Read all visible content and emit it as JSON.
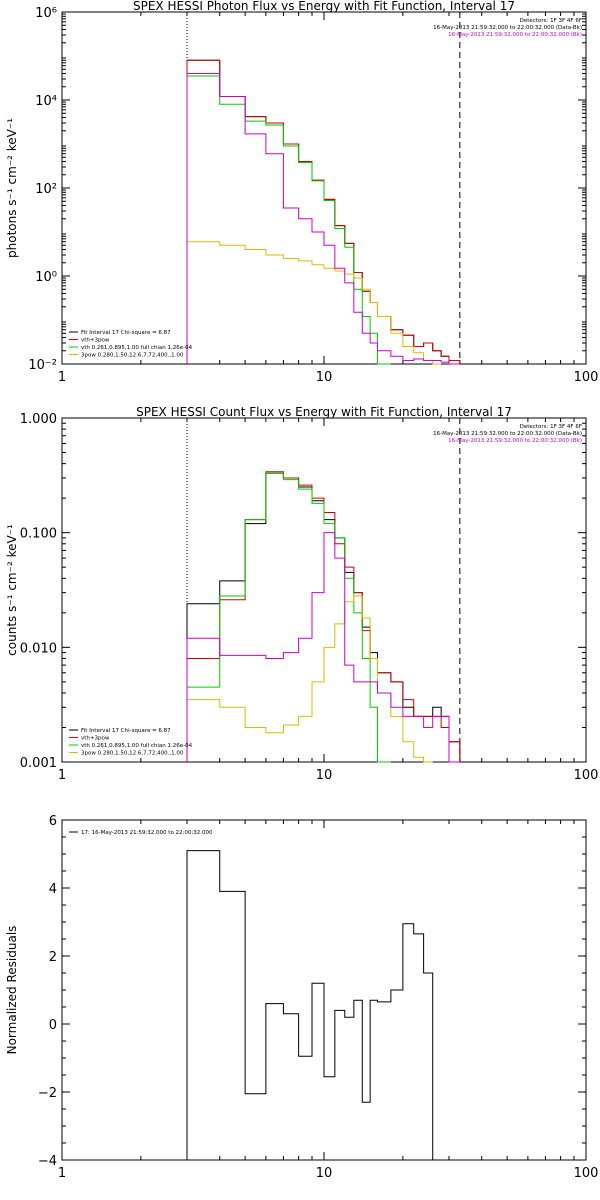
{
  "chart_data": [
    {
      "type": "line",
      "title": "SPEX HESSI Photon Flux vs Energy with Fit Function, Interval 17",
      "ylabel": "photons s⁻¹ cm⁻² keV⁻¹",
      "xlabel": "",
      "xscale": "log",
      "yscale": "log",
      "xlim": [
        1,
        100
      ],
      "ylim": [
        0.01,
        1000000
      ],
      "xticks": [
        {
          "v": 1,
          "label": "1"
        },
        {
          "v": 10,
          "label": "10"
        },
        {
          "v": 100,
          "label": "100"
        }
      ],
      "yticks": [
        {
          "v": 0.01,
          "label": "10⁻²"
        },
        {
          "v": 1,
          "label": "10⁰"
        },
        {
          "v": 100,
          "label": "10²"
        },
        {
          "v": 10000,
          "label": "10⁴"
        },
        {
          "v": 1000000,
          "label": "10⁶"
        }
      ],
      "vlines": [
        {
          "x": 3,
          "style": "dotted"
        },
        {
          "x": 33,
          "style": "dashed"
        }
      ],
      "info": [
        {
          "text": "Detectors: 1F 3F 4F 6F",
          "color": "#000000"
        },
        {
          "text": "16-May-2013 21:59:32.000 to 22:00:32.000 (Data-Bk)",
          "color": "#000000"
        },
        {
          "text": "16-May-2013 21:59:32.000 to 22:00:32.000 (Bk)",
          "color": "#cc00cc"
        }
      ],
      "legend": [
        {
          "text": "Fit Interval 17   Chi-square = 6.87",
          "color": "#000000"
        },
        {
          "text": "vth+3pow",
          "color": "#d40000"
        },
        {
          "text": "vth 0.261,0.895,1.00  full chian 1.26e-04",
          "color": "#00cc00"
        },
        {
          "text": "3pow 0.280,1.50,12.6,7.72,400.,1.00",
          "color": "#ddbb00"
        }
      ],
      "edges": [
        3,
        4,
        5,
        6,
        7,
        8,
        9,
        10,
        11,
        12,
        13,
        14,
        15,
        16,
        18,
        20,
        22,
        24,
        26,
        28,
        30,
        33
      ],
      "series": [
        {
          "color": "#000000",
          "values": [
            80000,
            12000,
            4200,
            3000,
            1000,
            400,
            150,
            55,
            14,
            5.5,
            1.2,
            0.45,
            0.25,
            0.12,
            0.06,
            0.045,
            0.025,
            0.03,
            0.02,
            0.015,
            0.012
          ]
        },
        {
          "color": "#d40000",
          "values": [
            80000,
            12000,
            4200,
            3000,
            1000,
            400,
            150,
            55,
            14,
            5.5,
            1.2,
            0.45,
            0.25,
            0.12,
            0.06,
            0.045,
            0.025,
            0.03,
            0.02,
            0.015,
            0.012
          ]
        },
        {
          "color": "#00cc00",
          "values": [
            35000,
            8000,
            3300,
            2700,
            900,
            380,
            145,
            52,
            12,
            4.5,
            0.5,
            0.12,
            0.05,
            0.01
          ]
        },
        {
          "color": "#ddbb00",
          "values": [
            6,
            5,
            4,
            3,
            2.5,
            2.2,
            1.8,
            1.5,
            1.3,
            1.1,
            0.9,
            0.5,
            0.25,
            0.12,
            0.05,
            0.025,
            0.018,
            0.012,
            0.01
          ]
        },
        {
          "color": "#cc00cc",
          "values": [
            40000,
            12000,
            1700,
            600,
            35,
            20,
            10,
            5,
            1.5,
            0.7,
            0.15,
            0.05,
            0.03,
            0.02,
            0.015,
            0.012,
            0.013,
            0.012,
            0.012,
            0.011,
            0.01
          ]
        }
      ]
    },
    {
      "type": "line",
      "title": "SPEX HESSI Count Flux vs Energy with Fit Function, Interval 17",
      "ylabel": "counts s⁻¹ cm⁻² keV⁻¹",
      "xlabel": "",
      "xscale": "log",
      "yscale": "log",
      "xlim": [
        1,
        100
      ],
      "ylim": [
        0.001,
        1
      ],
      "xticks": [
        {
          "v": 1,
          "label": "1"
        },
        {
          "v": 10,
          "label": "10"
        },
        {
          "v": 100,
          "label": "100"
        }
      ],
      "yticks": [
        {
          "v": 0.001,
          "label": "0.001"
        },
        {
          "v": 0.01,
          "label": "0.010"
        },
        {
          "v": 0.1,
          "label": "0.100"
        },
        {
          "v": 1,
          "label": "1.000"
        }
      ],
      "vlines": [
        {
          "x": 3,
          "style": "dotted"
        },
        {
          "x": 33,
          "style": "dashed"
        }
      ],
      "info": [
        {
          "text": "Detectors: 1F 3F 4F 6F",
          "color": "#000000"
        },
        {
          "text": "16-May-2013 21:59:32.000 to 22:00:32.000 (Data-Bk)",
          "color": "#000000"
        },
        {
          "text": "16-May-2013 21:59:32.000 to 22:00:32.000 (Bk)",
          "color": "#cc00cc"
        }
      ],
      "legend": [
        {
          "text": "Fit Interval 17   Chi-square = 6.87",
          "color": "#000000"
        },
        {
          "text": "vth+3pow",
          "color": "#d40000"
        },
        {
          "text": "vth 0.261,0.895,1.00  full chian 1.26e-04",
          "color": "#00cc00"
        },
        {
          "text": "3pow 0.280,1.50,12.6,7.72,400.,1.00",
          "color": "#ddbb00"
        }
      ],
      "edges": [
        3,
        4,
        5,
        6,
        7,
        8,
        9,
        10,
        11,
        12,
        13,
        14,
        15,
        16,
        18,
        20,
        22,
        24,
        26,
        28,
        30,
        33
      ],
      "series": [
        {
          "color": "#000000",
          "values": [
            0.024,
            0.038,
            0.12,
            0.33,
            0.3,
            0.25,
            0.19,
            0.13,
            0.09,
            0.045,
            0.03,
            0.015,
            0.009,
            0.006,
            0.005,
            0.003,
            0.0025,
            0.0025,
            0.003,
            0.0025,
            0.0015
          ]
        },
        {
          "color": "#d40000",
          "values": [
            0.008,
            0.026,
            0.13,
            0.34,
            0.3,
            0.26,
            0.2,
            0.15,
            0.08,
            0.05,
            0.03,
            0.014,
            0.008,
            0.006,
            0.005,
            0.0035,
            0.0025,
            0.0025,
            0.0025,
            0.002,
            0.0015
          ]
        },
        {
          "color": "#00cc00",
          "values": [
            0.0045,
            0.028,
            0.13,
            0.33,
            0.29,
            0.24,
            0.18,
            0.12,
            0.09,
            0.04,
            0.02,
            0.008,
            0.003,
            0.001
          ]
        },
        {
          "color": "#ddbb00",
          "values": [
            0.0035,
            0.003,
            0.002,
            0.0018,
            0.0021,
            0.0025,
            0.005,
            0.01,
            0.016,
            0.025,
            0.028,
            0.018,
            0.008,
            0.004,
            0.0025,
            0.0015,
            0.0011,
            0.001
          ]
        },
        {
          "color": "#cc00cc",
          "values": [
            0.012,
            0.0085,
            0.0085,
            0.008,
            0.009,
            0.012,
            0.03,
            0.1,
            0.06,
            0.007,
            0.005,
            0.005,
            0.005,
            0.004,
            0.003,
            0.0025,
            0.0025,
            0.002,
            0.0025,
            0.0025,
            0.001
          ]
        }
      ]
    },
    {
      "type": "line",
      "title": "",
      "ylabel": "Normalized Residuals",
      "xlabel": "",
      "xscale": "log",
      "yscale": "linear",
      "xlim": [
        1,
        100
      ],
      "ylim": [
        -4,
        6
      ],
      "xticks": [
        {
          "v": 1,
          "label": "1"
        },
        {
          "v": 10,
          "label": "10"
        },
        {
          "v": 100,
          "label": "100"
        }
      ],
      "yticks": [
        {
          "v": -4,
          "label": "−4"
        },
        {
          "v": -2,
          "label": "−2"
        },
        {
          "v": 0,
          "label": "0"
        },
        {
          "v": 2,
          "label": "2"
        },
        {
          "v": 4,
          "label": "4"
        },
        {
          "v": 6,
          "label": "6"
        }
      ],
      "vlines": [],
      "info": [],
      "legend": [
        {
          "text": "17: 16-May-2013 21:59:32.000 to 22:00:32.000",
          "color": "#000000"
        }
      ],
      "edges": [
        3,
        4,
        5,
        6,
        7,
        8,
        9,
        10,
        11,
        12,
        13,
        14,
        15,
        16,
        18,
        20,
        22,
        24,
        26,
        28,
        30,
        33
      ],
      "series": [
        {
          "color": "#000000",
          "values": [
            5.1,
            3.9,
            -2.05,
            0.6,
            0.3,
            -0.95,
            1.2,
            -1.55,
            0.4,
            0.2,
            0.7,
            -2.3,
            0.7,
            0.65,
            1.0,
            2.95,
            2.65,
            1.5
          ]
        }
      ]
    }
  ]
}
